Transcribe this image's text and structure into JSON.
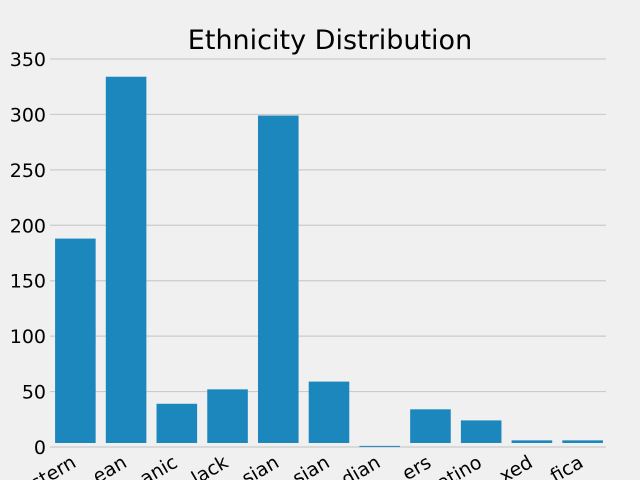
{
  "chart_data": {
    "type": "bar",
    "title": "Ethnicity Distribution",
    "xlabel": "",
    "ylabel": "",
    "categories": [
      "stern",
      "ean",
      "anic",
      "lack",
      "sian",
      "sian",
      "dian",
      "ers",
      "atino",
      "xed",
      "fica"
    ],
    "values": [
      188,
      334,
      39,
      52,
      299,
      59,
      1,
      34,
      24,
      6,
      6
    ],
    "ylim": [
      0,
      350
    ],
    "yticks": [
      0,
      50,
      100,
      150,
      200,
      250,
      300,
      350
    ],
    "grid": "horizontal",
    "colors": {
      "bar": "#1c87bd",
      "background": "#f0f0f0",
      "grid": "#cbcbcb"
    }
  }
}
